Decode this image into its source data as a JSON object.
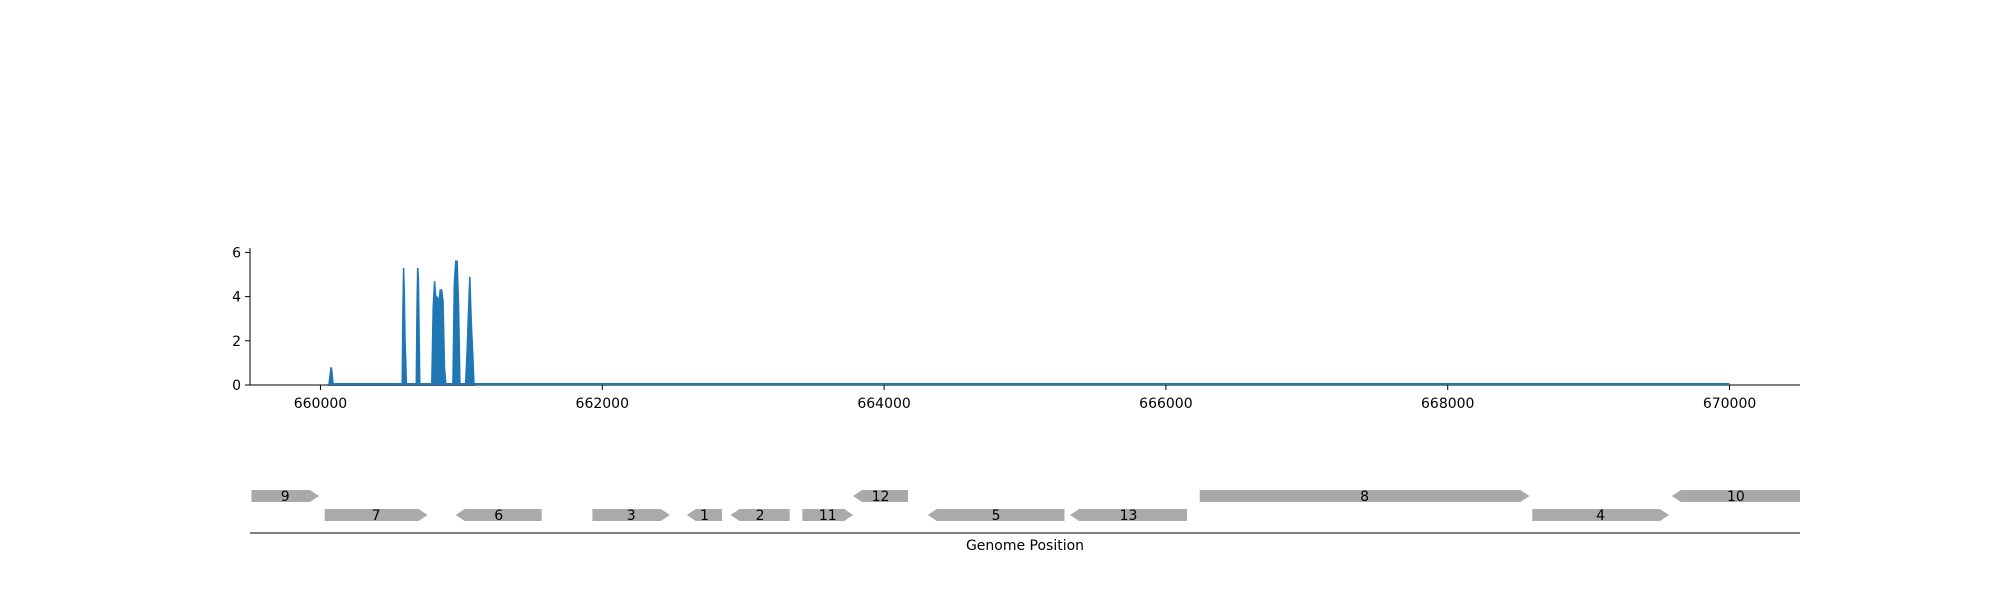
{
  "chart_data": [
    {
      "type": "area",
      "title": "",
      "xlabel": "",
      "ylabel": "",
      "xlim": [
        659500,
        670500
      ],
      "ylim": [
        0,
        6.2
      ],
      "x_ticks": [
        660000,
        662000,
        664000,
        666000,
        668000,
        670000
      ],
      "y_ticks": [
        0,
        2,
        4,
        6
      ],
      "grid": false,
      "legend": "none",
      "series": [
        {
          "color": "#1f77b4",
          "x": [
            660060,
            660075,
            660080,
            660090,
            660580,
            660585,
            660590,
            660595,
            660600,
            660605,
            660610,
            660680,
            660685,
            660690,
            660695,
            660700,
            660705,
            660790,
            660800,
            660810,
            660820,
            660830,
            660840,
            660850,
            660860,
            660870,
            660880,
            660890,
            660940,
            660950,
            660960,
            660970,
            660980,
            660990,
            661030,
            661040,
            661050,
            661060,
            661070,
            661080,
            661090
          ],
          "y": [
            0,
            0.8,
            0.7,
            0,
            0,
            3.3,
            5.3,
            4.2,
            2.1,
            1.2,
            0,
            0,
            3.4,
            5.3,
            4.8,
            2.4,
            0,
            0,
            3.5,
            4.7,
            3.8,
            4.0,
            3.6,
            4.3,
            4.3,
            3.8,
            0.8,
            0,
            0,
            4.6,
            5.6,
            5.6,
            3.6,
            0,
            0,
            1.4,
            3.2,
            4.9,
            2.9,
            1.5,
            0
          ]
        }
      ]
    },
    {
      "type": "gene-track",
      "xlabel": "Genome Position",
      "xlim": [
        659500,
        670500
      ],
      "genes": [
        {
          "label": "9",
          "start": 659510,
          "end": 659990,
          "strand": "+",
          "row": 0
        },
        {
          "label": "7",
          "start": 660030,
          "end": 660760,
          "strand": "+",
          "row": 1
        },
        {
          "label": "6",
          "start": 660960,
          "end": 661570,
          "strand": "-",
          "row": 1
        },
        {
          "label": "3",
          "start": 661930,
          "end": 662480,
          "strand": "+",
          "row": 1
        },
        {
          "label": "1",
          "start": 662600,
          "end": 662850,
          "strand": "-",
          "row": 1
        },
        {
          "label": "2",
          "start": 662910,
          "end": 663330,
          "strand": "-",
          "row": 1
        },
        {
          "label": "11",
          "start": 663420,
          "end": 663780,
          "strand": "+",
          "row": 1
        },
        {
          "label": "12",
          "start": 663780,
          "end": 664170,
          "strand": "-",
          "row": 0
        },
        {
          "label": "5",
          "start": 664310,
          "end": 665280,
          "strand": "-",
          "row": 1
        },
        {
          "label": "13",
          "start": 665320,
          "end": 666150,
          "strand": "-",
          "row": 1
        },
        {
          "label": "8",
          "start": 666240,
          "end": 668580,
          "strand": "+",
          "row": 0
        },
        {
          "label": "4",
          "start": 668600,
          "end": 669570,
          "strand": "+",
          "row": 1
        },
        {
          "label": "10",
          "start": 669590,
          "end": 670500,
          "strand": "-",
          "row": 0
        }
      ],
      "color": "#aaaaaa"
    }
  ]
}
